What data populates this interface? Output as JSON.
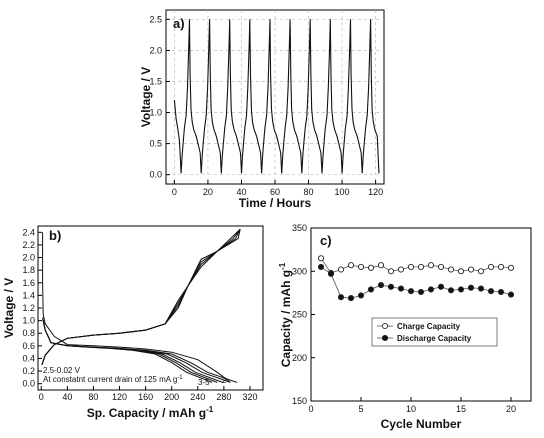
{
  "chart_data": [
    {
      "panel": "a)",
      "type": "line",
      "xlabel": "Time / Hours",
      "ylabel": "Voltage / V",
      "xlim": [
        -5,
        125
      ],
      "ylim": [
        -0.15,
        2.65
      ],
      "xticks": [
        0,
        20,
        40,
        60,
        80,
        100,
        120
      ],
      "yticks": [
        0.0,
        0.5,
        1.0,
        1.5,
        2.0,
        2.5
      ],
      "ytick_labels": [
        "0.0",
        "0.5",
        "1.0",
        "1.5",
        "2.0",
        "2.5"
      ],
      "grid": true,
      "cycle_peak_times_h": [
        9,
        21,
        33,
        45,
        57,
        69,
        81,
        93,
        105,
        117
      ],
      "cycle_trough_times_h": [
        4,
        16,
        28,
        40,
        52,
        64,
        76,
        88,
        100,
        112,
        122
      ],
      "peak_voltage": 2.5,
      "trough_voltage": 0.02,
      "plateau_voltage": 0.6
    },
    {
      "panel": "b)",
      "type": "line",
      "xlabel": "Sp. Capacity / mAh g",
      "xlabel_sup": "-1",
      "ylabel": "Voltage / V",
      "xlim": [
        -5,
        340
      ],
      "ylim": [
        -0.1,
        2.5
      ],
      "xticks": [
        0,
        40,
        80,
        120,
        160,
        200,
        240,
        280,
        320
      ],
      "yticks": [
        0.0,
        0.2,
        0.4,
        0.6,
        0.8,
        1.0,
        1.2,
        1.4,
        1.6,
        1.8,
        2.0,
        2.2,
        2.4
      ],
      "ytick_labels": [
        "0.0",
        "0.2",
        "0.4",
        "0.6",
        "0.8",
        "1.0",
        "1.2",
        "1.4",
        "1.6",
        "1.8",
        "2.0",
        "2.2",
        "2.4"
      ],
      "grid": false,
      "annotations": [
        "2.5-0.02 V",
        "At constatnt current drain of 125 mA g",
        "3-5",
        "2"
      ],
      "annotation_sup": "-1",
      "charge_end_capacity": 305,
      "discharge_end_capacities": [
        300,
        290,
        278,
        270,
        262
      ]
    },
    {
      "panel": "c)",
      "type": "scatter",
      "xlabel": "Cycle Number",
      "ylabel": "Capacity / mAh g",
      "ylabel_sup": "-1",
      "xlim": [
        0,
        22
      ],
      "ylim": [
        150,
        350
      ],
      "xticks": [
        0,
        5,
        10,
        15,
        20
      ],
      "yticks": [
        150,
        200,
        250,
        300,
        350
      ],
      "grid": false,
      "legend_position": "center-right",
      "x": [
        1,
        2,
        3,
        4,
        5,
        6,
        7,
        8,
        9,
        10,
        11,
        12,
        13,
        14,
        15,
        16,
        17,
        18,
        19,
        20
      ],
      "series": [
        {
          "name": "Charge Capacity",
          "marker": "open-circle",
          "values": [
            315,
            298,
            302,
            307,
            305,
            304,
            307,
            300,
            302,
            305,
            305,
            307,
            305,
            302,
            300,
            302,
            300,
            305,
            305,
            304
          ]
        },
        {
          "name": "Discharge Capacity",
          "marker": "filled-circle",
          "values": [
            305,
            297,
            270,
            269,
            272,
            279,
            284,
            282,
            280,
            277,
            276,
            279,
            282,
            278,
            279,
            281,
            280,
            277,
            276,
            273
          ]
        }
      ]
    }
  ]
}
